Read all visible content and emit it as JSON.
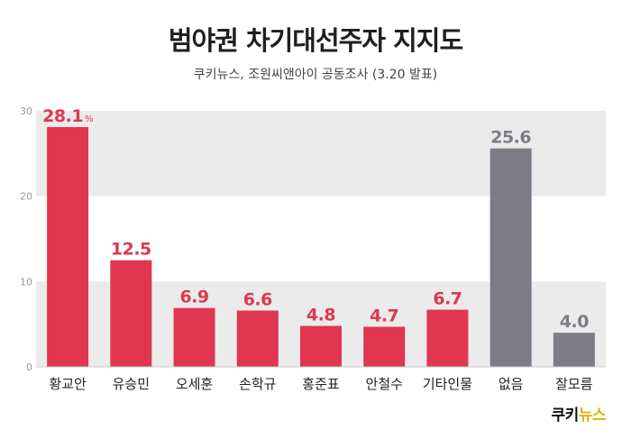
{
  "title": "범야권 차기대선주자 지지도",
  "subtitle": "쿠키뉴스, 조원씨앤아이 공동조사 (3.20 발표)",
  "logo": {
    "part1": "쿠키",
    "part2": "뉴스"
  },
  "colors": {
    "accent": "#e03650",
    "neutral": "#7d7c86",
    "band": "#ebebeb",
    "logo_yellow": "#e0b400"
  },
  "chart_data": {
    "type": "bar",
    "categories": [
      "황교안",
      "유승민",
      "오세훈",
      "손학규",
      "홍준표",
      "안철수",
      "기타인물",
      "없음",
      "잘모름"
    ],
    "values": [
      28.1,
      12.5,
      6.9,
      6.6,
      4.8,
      4.7,
      6.7,
      25.6,
      4.0
    ],
    "value_labels": [
      "28.1",
      "12.5",
      "6.9",
      "6.6",
      "4.8",
      "4.7",
      "6.7",
      "25.6",
      "4.0"
    ],
    "first_label_unit": "%",
    "highlight": [
      true,
      true,
      true,
      true,
      true,
      true,
      true,
      false,
      false
    ],
    "yticks": [
      0,
      10,
      20,
      30
    ],
    "ylim": [
      0,
      30
    ],
    "grid": "alternating bands"
  }
}
